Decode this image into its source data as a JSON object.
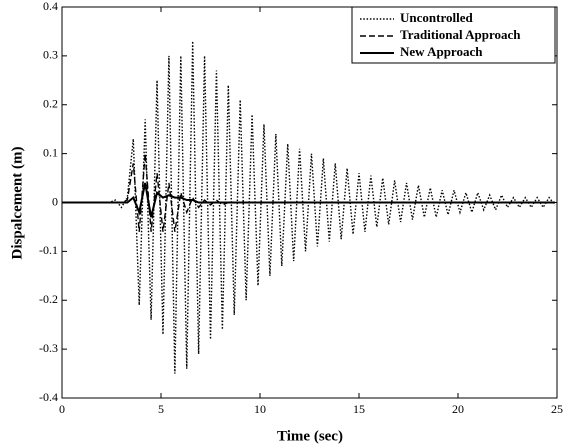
{
  "chart_data": {
    "type": "line",
    "xlabel": "Time (sec)",
    "ylabel": "Dispalcement (m)",
    "x": [
      0,
      2.4,
      2.7,
      3.0,
      3.3,
      3.6,
      3.9,
      4.2,
      4.5,
      4.8,
      5.1,
      5.4,
      5.7,
      6.0,
      6.3,
      6.6,
      6.9,
      7.2,
      7.5,
      7.8,
      8.1,
      8.4,
      8.7,
      9.0,
      9.3,
      9.6,
      9.9,
      10.2,
      10.5,
      10.8,
      11.1,
      11.4,
      11.7,
      12.0,
      12.3,
      12.6,
      12.9,
      13.2,
      13.5,
      13.8,
      14.1,
      14.4,
      14.7,
      15.0,
      15.3,
      15.6,
      15.9,
      16.2,
      16.5,
      16.8,
      17.1,
      17.4,
      17.7,
      18.0,
      18.3,
      18.6,
      18.9,
      19.2,
      19.5,
      19.8,
      20.1,
      20.4,
      20.7,
      21.0,
      21.3,
      21.6,
      21.9,
      22.2,
      22.5,
      22.8,
      23.1,
      23.4,
      23.7,
      24.0,
      24.3,
      24.6,
      24.9
    ],
    "series": [
      {
        "name": "Uncontrolled",
        "color": "#000000",
        "style": "dotted",
        "values": [
          0,
          0,
          0.005,
          -0.01,
          0.01,
          0.13,
          -0.21,
          0.17,
          -0.24,
          0.25,
          -0.27,
          0.3,
          -0.35,
          0.3,
          -0.34,
          0.33,
          -0.31,
          0.3,
          -0.28,
          0.27,
          -0.26,
          0.24,
          -0.23,
          0.21,
          -0.2,
          0.18,
          -0.17,
          0.16,
          -0.15,
          0.14,
          -0.13,
          0.12,
          -0.12,
          0.11,
          -0.1,
          0.1,
          -0.09,
          0.09,
          -0.08,
          0.08,
          -0.075,
          0.07,
          -0.065,
          0.06,
          -0.06,
          0.055,
          -0.05,
          0.05,
          -0.045,
          0.045,
          -0.04,
          0.04,
          -0.035,
          0.035,
          -0.03,
          0.03,
          -0.03,
          0.025,
          -0.025,
          0.025,
          -0.02,
          0.02,
          -0.02,
          0.02,
          -0.015,
          0.015,
          -0.015,
          0.015,
          -0.01,
          0.01,
          -0.01,
          0.01,
          -0.01,
          0.01,
          -0.01,
          0.01,
          -0.005
        ]
      },
      {
        "name": "Traditional Approach",
        "color": "#000000",
        "style": "dashed",
        "values": [
          0,
          0,
          0,
          0,
          0.005,
          0.08,
          -0.06,
          0.1,
          -0.06,
          0.06,
          -0.06,
          0.04,
          -0.06,
          0.02,
          -0.02,
          0.01,
          -0.01,
          0.005,
          -0.005,
          0.005,
          -0.005,
          0,
          0,
          0,
          0,
          0,
          0,
          0,
          0,
          0,
          0,
          0,
          0,
          0,
          0,
          0,
          0,
          0,
          0,
          0,
          0,
          0,
          0,
          0,
          0,
          0,
          0,
          0,
          0,
          0,
          0,
          0,
          0,
          0,
          0,
          0,
          0,
          0,
          0,
          0,
          0,
          0,
          0,
          0,
          0,
          0,
          0,
          0,
          0,
          0,
          0,
          0,
          0,
          0,
          0,
          0,
          0
        ]
      },
      {
        "name": "New Approach",
        "color": "#000000",
        "style": "solid",
        "values": [
          0,
          0,
          0,
          0,
          0,
          0.01,
          -0.02,
          0.04,
          -0.03,
          0.02,
          0.01,
          0.015,
          0.01,
          0.01,
          0.005,
          0.005,
          0,
          0,
          0,
          0,
          0,
          0,
          0,
          0,
          0,
          0,
          0,
          0,
          0,
          0,
          0,
          0,
          0,
          0,
          0,
          0,
          0,
          0,
          0,
          0,
          0,
          0,
          0,
          0,
          0,
          0,
          0,
          0,
          0,
          0,
          0,
          0,
          0,
          0,
          0,
          0,
          0,
          0,
          0,
          0,
          0,
          0,
          0,
          0,
          0,
          0,
          0,
          0,
          0,
          0,
          0,
          0,
          0,
          0,
          0,
          0,
          0
        ]
      }
    ],
    "xlim": [
      0,
      25
    ],
    "xticks": [
      0,
      5,
      10,
      15,
      20,
      25
    ],
    "ylim": [
      -0.4,
      0.4
    ],
    "yticks": [
      -0.4,
      -0.3,
      -0.2,
      -0.1,
      0,
      0.1,
      0.2,
      0.3,
      0.4
    ],
    "grid": false,
    "legend": "upper right"
  }
}
